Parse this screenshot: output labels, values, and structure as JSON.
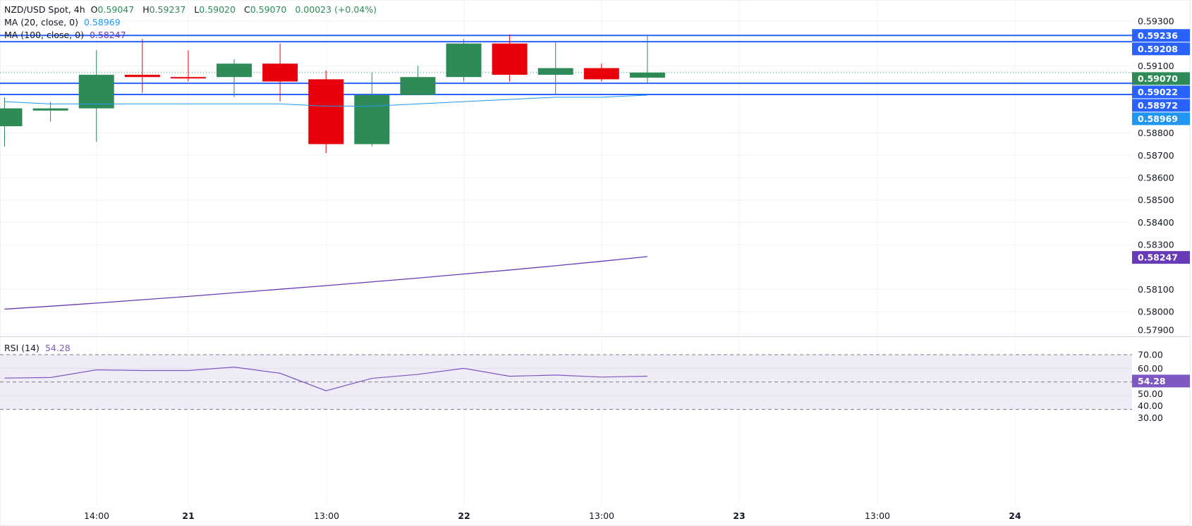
{
  "legend": {
    "symbol": "NZD/USD Spot, 4h",
    "o_label": "O",
    "o": "0.59047",
    "h_label": "H",
    "h": "0.59237",
    "l_label": "L",
    "l": "0.59020",
    "c_label": "C",
    "c": "0.59070",
    "change": "0.00023 (+0.04%)",
    "ma20_name": "MA (20, close, 0)",
    "ma20_value": "0.58969",
    "ma100_name": "MA (100, close, 0)",
    "ma100_value": "0.58247",
    "rsi_name": "RSI (14)",
    "rsi_value": "54.28"
  },
  "colors": {
    "up": "#2e8b57",
    "down": "#e8000b",
    "hline": "#2962ff",
    "ma20": "#2196f3",
    "ma100": "#673ab7",
    "rsi": "#7e57c2",
    "rsi_band": "#efecf7"
  },
  "chart_data": [
    {
      "type": "candlestick",
      "title": "NZD/USD Spot, 4h",
      "ylim": [
        0.579,
        0.5935
      ],
      "y_ticks": [
        "0.59300",
        "0.59100",
        "0.58800",
        "0.58700",
        "0.58600",
        "0.58500",
        "0.58400",
        "0.58300",
        "0.58100",
        "0.58000",
        "0.57900"
      ],
      "x_ticks": [
        "14:00",
        "21",
        "13:00",
        "22",
        "13:00",
        "23",
        "13:00",
        "24"
      ],
      "candles": [
        {
          "o": 0.5883,
          "h": 0.5896,
          "l": 0.5874,
          "c": 0.5891
        },
        {
          "o": 0.589,
          "h": 0.5894,
          "l": 0.5885,
          "c": 0.5891
        },
        {
          "o": 0.5891,
          "h": 0.5917,
          "l": 0.5876,
          "c": 0.5906
        },
        {
          "o": 0.5906,
          "h": 0.5922,
          "l": 0.5898,
          "c": 0.5905
        },
        {
          "o": 0.5905,
          "h": 0.5917,
          "l": 0.5903,
          "c": 0.59048
        },
        {
          "o": 0.5905,
          "h": 0.5913,
          "l": 0.5896,
          "c": 0.5911
        },
        {
          "o": 0.5911,
          "h": 0.592,
          "l": 0.5894,
          "c": 0.5903
        },
        {
          "o": 0.5904,
          "h": 0.5908,
          "l": 0.5871,
          "c": 0.5875
        },
        {
          "o": 0.5875,
          "h": 0.5907,
          "l": 0.5874,
          "c": 0.5897
        },
        {
          "o": 0.5897,
          "h": 0.591,
          "l": 0.5897,
          "c": 0.5905
        },
        {
          "o": 0.5905,
          "h": 0.5922,
          "l": 0.5903,
          "c": 0.592
        },
        {
          "o": 0.592,
          "h": 0.5924,
          "l": 0.5903,
          "c": 0.5906
        },
        {
          "o": 0.5906,
          "h": 0.5921,
          "l": 0.5897,
          "c": 0.5909
        },
        {
          "o": 0.5909,
          "h": 0.5911,
          "l": 0.5903,
          "c": 0.5904
        },
        {
          "o": 0.59047,
          "h": 0.59237,
          "l": 0.5902,
          "c": 0.5907
        }
      ],
      "ma20": [
        0.5894,
        0.5893,
        0.5893,
        0.5893,
        0.5893,
        0.5893,
        0.5893,
        0.5892,
        0.5892,
        0.5893,
        0.5894,
        0.5895,
        0.5896,
        0.5896,
        0.58969
      ],
      "ma100": [
        0.58012,
        0.58025,
        0.58039,
        0.58054,
        0.58069,
        0.58085,
        0.58101,
        0.58117,
        0.58134,
        0.58151,
        0.58169,
        0.58187,
        0.58206,
        0.58226,
        0.58247
      ],
      "horizontal_lines": [
        "0.59236",
        "0.59208",
        "0.59022",
        "0.58972"
      ],
      "last_price": "0.59070",
      "ma20_label": "0.58969",
      "ma100_label": "0.58247"
    },
    {
      "type": "line",
      "title": "RSI (14)",
      "ylim": [
        25,
        75
      ],
      "y_ticks": [
        "70.00",
        "60.00",
        "50.00",
        "40.00",
        "30.00"
      ],
      "band": [
        30,
        70
      ],
      "dashed_levels": [
        70,
        50,
        30
      ],
      "values": [
        52.9,
        53.3,
        58.9,
        58.4,
        58.4,
        60.9,
        56.4,
        43.6,
        52.7,
        55.6,
        60.0,
        54.2,
        55.1,
        53.6,
        54.28
      ],
      "last_label": "54.28"
    }
  ]
}
